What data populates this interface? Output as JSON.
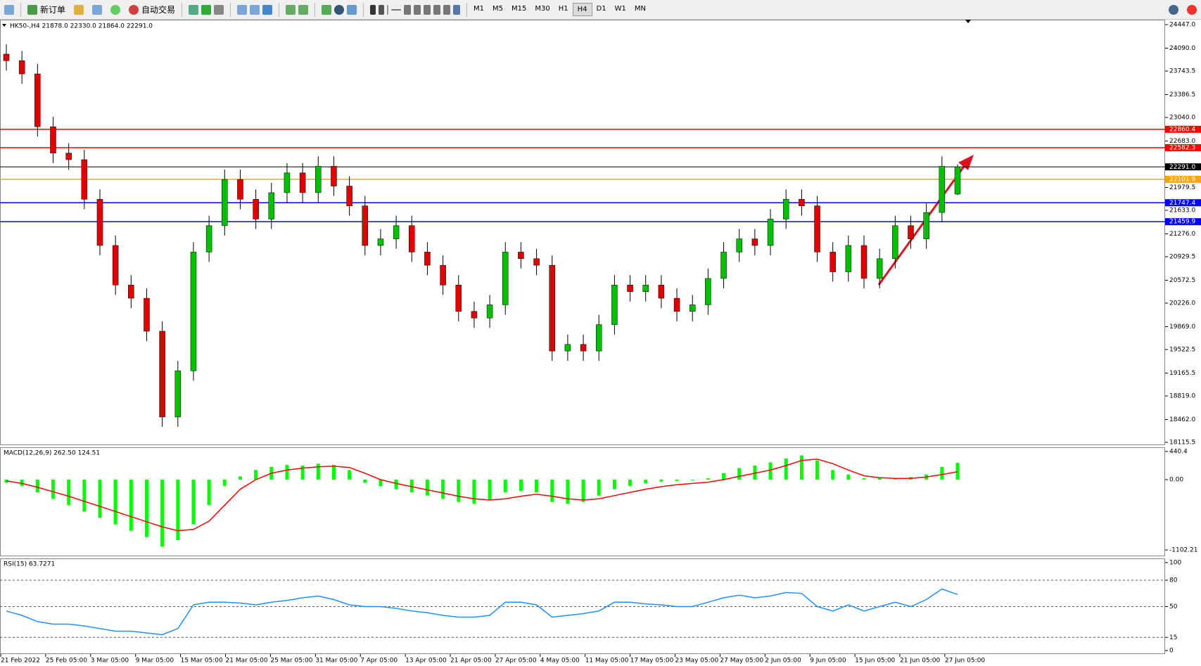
{
  "toolbar": {
    "new_order": "新订单",
    "auto_trading": "自动交易",
    "timeframes": [
      "M1",
      "M5",
      "M15",
      "M30",
      "H1",
      "H4",
      "D1",
      "W1",
      "MN"
    ],
    "active_timeframe": "H4"
  },
  "chart_data": {
    "type": "candlestick",
    "header": "HK50-,H4  21878.0 22330.0 21864.0 22291.0",
    "up_color": "#00c000",
    "down_color": "#e00000",
    "ylim": [
      18115.5,
      24447.0
    ],
    "yticks": [
      {
        "value": 24447.0,
        "label": "24447.0"
      },
      {
        "value": 24090.0,
        "label": "24090.0"
      },
      {
        "value": 23743.5,
        "label": "23743.5"
      },
      {
        "value": 23386.5,
        "label": "23386.5"
      },
      {
        "value": 23040.0,
        "label": "23040.0"
      },
      {
        "value": 22683.0,
        "label": "22683.0"
      },
      {
        "value": 21979.5,
        "label": "21979.5"
      },
      {
        "value": 21633.0,
        "label": "21633.0"
      },
      {
        "value": 21276.0,
        "label": "21276.0"
      },
      {
        "value": 20929.5,
        "label": "20929.5"
      },
      {
        "value": 20572.5,
        "label": "20572.5"
      },
      {
        "value": 20226.0,
        "label": "20226.0"
      },
      {
        "value": 19869.0,
        "label": "19869.0"
      },
      {
        "value": 19522.5,
        "label": "19522.5"
      },
      {
        "value": 19165.5,
        "label": "19165.5"
      },
      {
        "value": 18819.0,
        "label": "18819.0"
      },
      {
        "value": 18462.0,
        "label": "18462.0"
      },
      {
        "value": 18115.5,
        "label": "18115.5"
      }
    ],
    "levels": [
      {
        "value": 22860.4,
        "color": "#ff0000"
      },
      {
        "value": 22582.3,
        "color": "#ff0000"
      },
      {
        "value": 22291.0,
        "label": "22291.0",
        "color": "#000000"
      },
      {
        "value": 22101.9,
        "color": "#ffa500"
      },
      {
        "value": 21747.4,
        "color": "#0000ff"
      },
      {
        "value": 21459.9,
        "color": "#0000ff"
      }
    ],
    "x_labels": [
      "21 Feb 2022",
      "25 Feb 05:00",
      "3 Mar 05:00",
      "9 Mar 05:00",
      "15 Mar 05:00",
      "21 Mar 05:00",
      "25 Mar 05:00",
      "31 Mar 05:00",
      "7 Apr 05:00",
      "13 Apr 05:00",
      "21 Apr 05:00",
      "27 Apr 05:00",
      "4 May 05:00",
      "11 May 05:00",
      "17 May 05:00",
      "23 May 05:00",
      "27 May 05:00",
      "2 Jun 05:00",
      "9 Jun 05:00",
      "15 Jun 05:00",
      "21 Jun 05:00",
      "27 Jun 05:00"
    ],
    "open": [
      24000,
      23900,
      23700,
      22900,
      22500,
      22400,
      21800,
      21100,
      20500,
      20300,
      19800,
      18500,
      19200,
      21000,
      21400,
      22100,
      21800,
      21500,
      21900,
      22200,
      21900,
      22300,
      22000,
      21700,
      21100,
      21200,
      21400,
      21000,
      20800,
      20500,
      20100,
      20000,
      20200,
      21000,
      20900,
      20800,
      19500,
      19600,
      19500,
      19900,
      20500,
      20400,
      20500,
      20300,
      20100,
      20200,
      20600,
      21000,
      21200,
      21100,
      21500,
      21800,
      21700,
      21000,
      20700,
      21100,
      20600,
      20900,
      21400,
      21200,
      21600,
      21878
    ],
    "high": [
      24150,
      24050,
      23850,
      23050,
      22650,
      22550,
      21950,
      21250,
      20650,
      20450,
      19950,
      19350,
      21150,
      21550,
      22250,
      22250,
      21950,
      22050,
      22350,
      22350,
      22450,
      22450,
      22150,
      21850,
      21350,
      21550,
      21550,
      21150,
      20950,
      20650,
      20250,
      20350,
      21150,
      21150,
      21050,
      20950,
      19750,
      19750,
      20050,
      20650,
      20650,
      20650,
      20650,
      20450,
      20350,
      20750,
      21150,
      21350,
      21350,
      21650,
      21950,
      21950,
      21850,
      21150,
      21250,
      21250,
      21050,
      21550,
      21550,
      21750,
      22450,
      22330
    ],
    "low": [
      23750,
      23550,
      22750,
      22350,
      22250,
      21650,
      20950,
      20350,
      20150,
      19650,
      18350,
      18350,
      19050,
      20850,
      21250,
      21650,
      21350,
      21350,
      21750,
      21750,
      21750,
      21850,
      21550,
      20950,
      20950,
      21050,
      20850,
      20650,
      20350,
      19950,
      19850,
      19850,
      20050,
      20750,
      20650,
      19350,
      19350,
      19350,
      19350,
      19750,
      20250,
      20250,
      20150,
      19950,
      19950,
      20050,
      20450,
      20850,
      20950,
      20950,
      21350,
      21550,
      20850,
      20550,
      20550,
      20450,
      20450,
      20750,
      21050,
      21050,
      21450,
      21864
    ],
    "close": [
      23900,
      23700,
      22900,
      22500,
      22400,
      21800,
      21100,
      20500,
      20300,
      19800,
      18500,
      19200,
      21000,
      21400,
      22100,
      21800,
      21500,
      21900,
      22200,
      21900,
      22300,
      22000,
      21700,
      21100,
      21200,
      21400,
      21000,
      20800,
      20500,
      20100,
      20000,
      20200,
      21000,
      20900,
      20800,
      19500,
      19600,
      19500,
      19900,
      20500,
      20400,
      20500,
      20300,
      20100,
      20200,
      20600,
      21000,
      21200,
      21100,
      21500,
      21800,
      21700,
      21000,
      20700,
      21100,
      20600,
      20900,
      21400,
      21200,
      21600,
      22300,
      22291
    ],
    "macd": {
      "label": "MACD(12,26,9) 262.50 124.51",
      "hist_color": "#00ff00",
      "signal_color": "#ff0000",
      "ylim": [
        -1102.21,
        440.4
      ],
      "yticks": [
        440.4,
        {
          "value": 0,
          "label": "0.00"
        },
        -1102.21
      ],
      "hist": [
        -50,
        -100,
        -200,
        -300,
        -400,
        -500,
        -600,
        -700,
        -800,
        -900,
        -1050,
        -950,
        -700,
        -400,
        -100,
        50,
        150,
        200,
        230,
        220,
        250,
        230,
        150,
        -50,
        -100,
        -150,
        -200,
        -250,
        -300,
        -350,
        -380,
        -320,
        -200,
        -180,
        -200,
        -350,
        -380,
        -350,
        -250,
        -150,
        -100,
        -60,
        -30,
        -20,
        -10,
        20,
        100,
        180,
        220,
        270,
        330,
        380,
        300,
        150,
        80,
        20,
        30,
        20,
        40,
        80,
        200,
        262.5
      ],
      "signal": [
        -20,
        -60,
        -120,
        -190,
        -260,
        -340,
        -420,
        -500,
        -580,
        -660,
        -740,
        -800,
        -780,
        -650,
        -400,
        -150,
        0,
        100,
        150,
        180,
        200,
        210,
        190,
        100,
        0,
        -60,
        -110,
        -160,
        -210,
        -260,
        -300,
        -320,
        -300,
        -260,
        -230,
        -260,
        -300,
        -320,
        -300,
        -250,
        -200,
        -150,
        -110,
        -80,
        -60,
        -40,
        0,
        50,
        100,
        150,
        220,
        300,
        320,
        250,
        150,
        60,
        30,
        20,
        20,
        40,
        80,
        124.51
      ]
    },
    "rsi": {
      "label": "RSI(15) 63.7271",
      "color": "#1e90ff",
      "ylim": [
        0,
        100
      ],
      "yticks": [
        100,
        80,
        50,
        15,
        0
      ],
      "levels": [
        80,
        50,
        15
      ],
      "values": [
        45,
        40,
        33,
        30,
        30,
        28,
        25,
        22,
        22,
        20,
        18,
        25,
        52,
        55,
        55,
        54,
        52,
        55,
        57,
        60,
        62,
        58,
        52,
        50,
        50,
        48,
        45,
        43,
        40,
        38,
        38,
        40,
        55,
        55,
        52,
        38,
        40,
        42,
        45,
        55,
        55,
        53,
        52,
        50,
        50,
        55,
        60,
        63,
        60,
        62,
        66,
        65,
        50,
        45,
        52,
        45,
        50,
        55,
        50,
        58,
        70,
        63.7271
      ]
    }
  }
}
